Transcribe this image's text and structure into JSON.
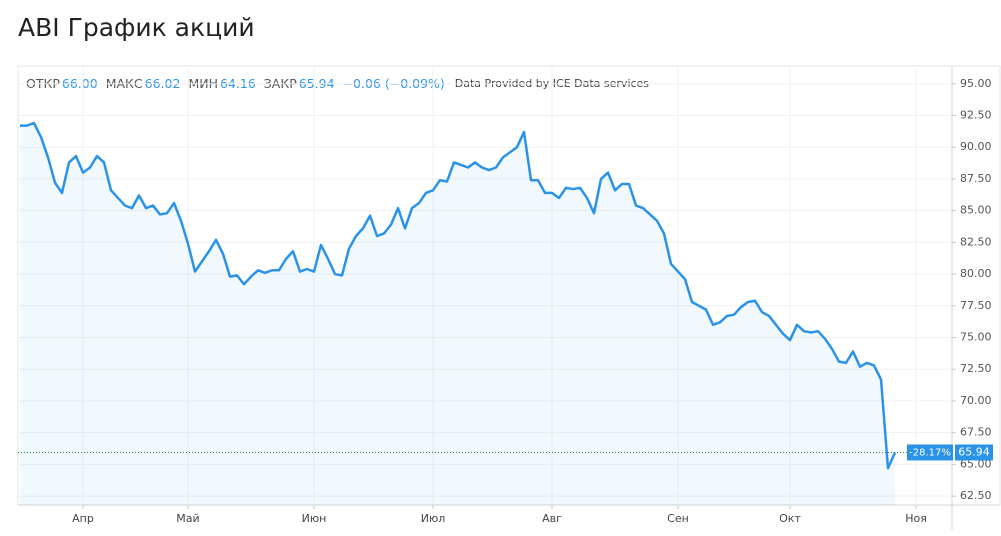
{
  "title": "ABI График акций",
  "chart_data": {
    "type": "line",
    "stats": [
      {
        "label": "ОТКР",
        "value": "66.00"
      },
      {
        "label": "МАКС",
        "value": "66.02"
      },
      {
        "label": "МИН",
        "value": "64.16"
      },
      {
        "label": "ЗАКР",
        "value": "65.94"
      }
    ],
    "change": "−0.06 (−0.09%)",
    "source": "Data Provided by ICE Data services",
    "last_change_pct": "-28.17%",
    "color": "#2a93e8",
    "grid": true,
    "categories": [
      null,
      null,
      null,
      null,
      null,
      null,
      null,
      null,
      null,
      "Апр",
      null,
      null,
      null,
      null,
      null,
      null,
      null,
      null,
      null,
      null,
      null,
      null,
      null,
      null,
      "Май",
      null,
      null,
      null,
      null,
      null,
      null,
      null,
      null,
      null,
      null,
      null,
      null,
      null,
      null,
      null,
      null,
      null,
      "Июн",
      null,
      null,
      null,
      null,
      null,
      null,
      null,
      null,
      null,
      null,
      null,
      null,
      null,
      null,
      null,
      null,
      "Июл",
      null,
      null,
      null,
      null,
      null,
      null,
      null,
      null,
      null,
      null,
      null,
      null,
      null,
      null,
      null,
      null,
      "Авг",
      null,
      null,
      null,
      null,
      null,
      null,
      null,
      null,
      null,
      null,
      null,
      null,
      null,
      null,
      null,
      null,
      null,
      "Сен",
      null,
      null,
      null,
      null,
      null,
      null,
      null,
      null,
      null,
      null,
      null,
      null,
      null,
      null,
      null,
      "Окт",
      null,
      null,
      null,
      null,
      null,
      null,
      null,
      null,
      null,
      null,
      null,
      null,
      null,
      null,
      null,
      null,
      null,
      "Ноя"
    ],
    "values": [
      91.7,
      91.7,
      91.9,
      90.8,
      89.2,
      87.2,
      86.4,
      88.8,
      89.3,
      88.0,
      88.4,
      89.3,
      88.8,
      86.6,
      86.0,
      85.4,
      85.2,
      86.2,
      85.2,
      85.4,
      84.7,
      84.8,
      85.6,
      84.2,
      82.4,
      80.2,
      81.0,
      81.8,
      82.7,
      81.6,
      79.8,
      79.9,
      79.2,
      79.8,
      80.3,
      80.1,
      80.3,
      80.3,
      81.2,
      81.8,
      80.2,
      80.4,
      80.2,
      82.3,
      81.2,
      80.0,
      79.9,
      82.0,
      83.0,
      83.6,
      84.6,
      83.0,
      83.2,
      83.9,
      85.2,
      83.6,
      85.2,
      85.6,
      86.4,
      86.6,
      87.4,
      87.3,
      88.8,
      88.6,
      88.4,
      88.8,
      88.4,
      88.2,
      88.4,
      89.2,
      89.6,
      90.0,
      91.2,
      87.4,
      87.4,
      86.4,
      86.4,
      86.0,
      86.8,
      86.7,
      86.8,
      86.0,
      84.8,
      87.5,
      88.0,
      86.6,
      87.1,
      87.1,
      85.4,
      85.2,
      84.7,
      84.2,
      83.2,
      80.8,
      80.2,
      79.6,
      77.8,
      77.5,
      77.2,
      76.0,
      76.2,
      76.7,
      76.8,
      77.4,
      77.8,
      77.9,
      77.0,
      76.7,
      76.0,
      75.3,
      74.8,
      76.0,
      75.5,
      75.4,
      75.5,
      74.9,
      74.1,
      73.1,
      73.0,
      73.9,
      72.7,
      73.0,
      72.8,
      71.7,
      64.7,
      65.94,
      null,
      null,
      null
    ],
    "ylim": [
      61.8,
      96.4
    ],
    "yticks": [
      {
        "value": 62.5,
        "label": "62.50"
      },
      {
        "value": 65,
        "label": "65.00"
      },
      {
        "value": 67.5,
        "label": "67.50"
      },
      {
        "value": 70,
        "label": "70.00"
      },
      {
        "value": 72.5,
        "label": "72.50"
      },
      {
        "value": 75,
        "label": "75.00"
      },
      {
        "value": 77.5,
        "label": "77.50"
      },
      {
        "value": 80,
        "label": "80.00"
      },
      {
        "value": 82.5,
        "label": "82.50"
      },
      {
        "value": 85,
        "label": "85.00"
      },
      {
        "value": 87.5,
        "label": "87.50"
      },
      {
        "value": 90,
        "label": "90.00"
      },
      {
        "value": 92.5,
        "label": "92.50"
      },
      {
        "value": 95,
        "label": "95.00"
      }
    ]
  }
}
